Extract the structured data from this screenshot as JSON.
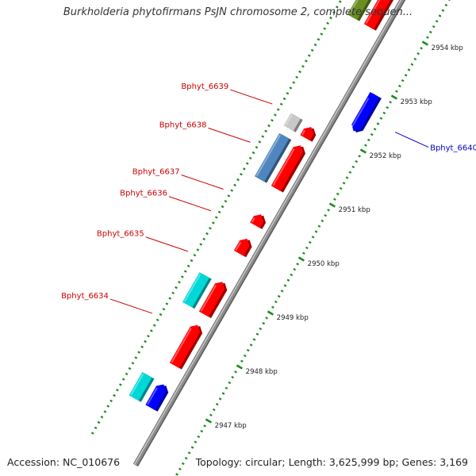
{
  "title": "Burkholderia phytofirmans PsJN chromosome 2, complete sequen...",
  "footer": {
    "accession": "Accession: NC_010676",
    "topology": "Topology: circular; Length: 3,625,999 bp; Genes: 3,169"
  },
  "colors": {
    "backbone": "#8c8c8c",
    "tick": "#1a8c1a",
    "scale_text": "#222222",
    "red_gene": "#ff0000",
    "blue_gene": "#0000ff",
    "cyan_feature": "#00d8d8",
    "steelblue_feature": "#4f86c0",
    "olive_feature": "#6b8e23",
    "gray_feature": "#c8c8c8",
    "label_red": "#cc0000",
    "label_blue": "#0000cc"
  },
  "scale": {
    "unit": "kbp",
    "major_ticks": [
      {
        "pos": 2947,
        "label": "2947 kbp"
      },
      {
        "pos": 2948,
        "label": "2948 kbp"
      },
      {
        "pos": 2949,
        "label": "2949 kbp"
      },
      {
        "pos": 2950,
        "label": "2950 kbp"
      },
      {
        "pos": 2951,
        "label": "2951 kbp"
      },
      {
        "pos": 2952,
        "label": "2952 kbp"
      },
      {
        "pos": 2953,
        "label": "2953 kbp"
      },
      {
        "pos": 2954,
        "label": "2954 kbp"
      }
    ]
  },
  "features": [
    {
      "track": "cds_rev",
      "start": 2946.72,
      "end": 2947.15,
      "color": "blue_gene"
    },
    {
      "track": "gene_rev",
      "start": 2946.72,
      "end": 2947.15,
      "color": "cyan_feature"
    },
    {
      "track": "cds_rev",
      "start": 2947.5,
      "end": 2948.25,
      "color": "red_gene"
    },
    {
      "track": "gene_rev",
      "start": 2948.45,
      "end": 2949.0,
      "color": "cyan_feature"
    },
    {
      "track": "cds_rev",
      "start": 2948.45,
      "end": 2949.05,
      "color": "red_gene"
    },
    {
      "track": "cds_rev",
      "start": 2949.58,
      "end": 2949.85,
      "color": "red_gene"
    },
    {
      "track": "cds_rev",
      "start": 2950.1,
      "end": 2950.3,
      "color": "red_gene"
    },
    {
      "track": "gene_rev",
      "start": 2950.78,
      "end": 2951.58,
      "color": "steelblue_feature"
    },
    {
      "track": "cds_rev",
      "start": 2950.78,
      "end": 2951.58,
      "color": "red_gene"
    },
    {
      "track": "gene_rev",
      "start": 2951.72,
      "end": 2951.95,
      "color": "gray_feature"
    },
    {
      "track": "cds_rev",
      "start": 2951.72,
      "end": 2951.92,
      "color": "red_gene"
    },
    {
      "track": "cds_fwd",
      "start": 2952.2,
      "end": 2952.88,
      "color": "blue_gene"
    },
    {
      "track": "gene_rev",
      "start": 2953.78,
      "end": 2954.7,
      "color": "olive_feature"
    },
    {
      "track": "cds_rev",
      "start": 2953.78,
      "end": 2954.85,
      "color": "red_gene"
    }
  ],
  "labels": [
    {
      "text": "Bphyt_6634",
      "pos": 2948.05,
      "side": "left",
      "color": "label_red"
    },
    {
      "text": "Bphyt_6635",
      "pos": 2949.2,
      "side": "left",
      "color": "label_red"
    },
    {
      "text": "Bphyt_6636",
      "pos": 2949.95,
      "side": "left",
      "color": "label_red"
    },
    {
      "text": "Bphyt_6637",
      "pos": 2950.35,
      "side": "left",
      "color": "label_red"
    },
    {
      "text": "Bphyt_6638",
      "pos": 2951.22,
      "side": "left",
      "color": "label_red"
    },
    {
      "text": "Bphyt_6639",
      "pos": 2951.93,
      "side": "left",
      "color": "label_red"
    },
    {
      "text": "Bphyt_6640",
      "pos": 2952.52,
      "side": "right",
      "color": "label_blue"
    }
  ]
}
